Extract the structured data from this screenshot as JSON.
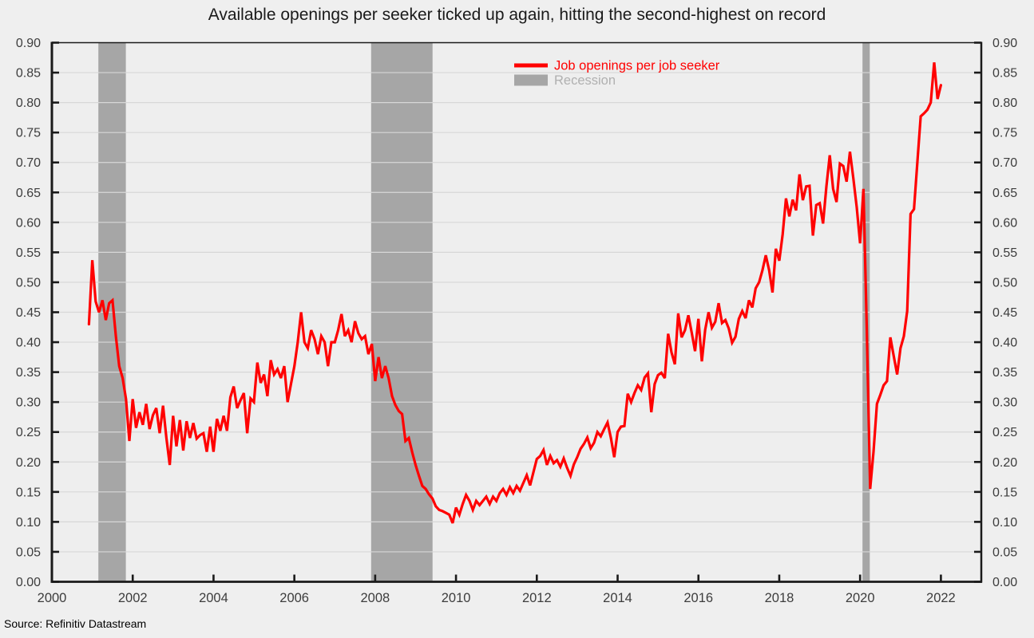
{
  "title": "Available openings per seeker ticked up again, hitting the second-highest on record",
  "source": "Source: Refinitiv Datastream",
  "colors": {
    "background": "#efefef",
    "plot_background": "#eeeeee",
    "line": "#ff0000",
    "recession_band": "#a6a6a6",
    "recession_legend_text": "#b0b0b0",
    "gridline": "#d7d7d7",
    "axis": "#1a1a1a",
    "tick_label": "#3d3d3d"
  },
  "chart_data": {
    "type": "line",
    "title": "Available openings per seeker ticked up again, hitting the second-highest on record",
    "xlabel": "",
    "ylabel": "",
    "xlim": [
      2000,
      2023
    ],
    "ylim": [
      0.0,
      0.9
    ],
    "x_ticks": [
      2000,
      2002,
      2004,
      2006,
      2008,
      2010,
      2012,
      2014,
      2016,
      2018,
      2020,
      2022
    ],
    "y_tick_step": 0.05,
    "grid": "horizontal",
    "legend_position": "top-center",
    "legend": [
      {
        "label": "Job openings per job seeker",
        "type": "line",
        "color": "#ff0000",
        "text_color": "#ff0000"
      },
      {
        "label": "Recession",
        "type": "box",
        "color": "#a6a6a6",
        "text_color": "#b0b0b0"
      }
    ],
    "recessions": [
      {
        "start": 2001.15,
        "end": 2001.83
      },
      {
        "start": 2007.9,
        "end": 2009.42
      },
      {
        "start": 2020.06,
        "end": 2020.24
      }
    ],
    "series": [
      {
        "name": "Job openings per job seeker",
        "color": "#ff0000",
        "frequency": "monthly",
        "start_year": 2000,
        "start_month": 12,
        "values": [
          0.43,
          0.537,
          0.468,
          0.45,
          0.47,
          0.437,
          0.465,
          0.47,
          0.41,
          0.36,
          0.34,
          0.305,
          0.235,
          0.305,
          0.257,
          0.283,
          0.262,
          0.297,
          0.255,
          0.278,
          0.29,
          0.248,
          0.294,
          0.24,
          0.195,
          0.277,
          0.226,
          0.27,
          0.219,
          0.268,
          0.24,
          0.265,
          0.239,
          0.245,
          0.248,
          0.217,
          0.259,
          0.217,
          0.272,
          0.252,
          0.277,
          0.252,
          0.308,
          0.326,
          0.29,
          0.303,
          0.315,
          0.248,
          0.306,
          0.3,
          0.366,
          0.332,
          0.346,
          0.31,
          0.37,
          0.346,
          0.355,
          0.34,
          0.36,
          0.3,
          0.33,
          0.36,
          0.4,
          0.45,
          0.4,
          0.39,
          0.42,
          0.405,
          0.38,
          0.41,
          0.4,
          0.36,
          0.4,
          0.4,
          0.42,
          0.447,
          0.41,
          0.42,
          0.4,
          0.435,
          0.415,
          0.405,
          0.41,
          0.38,
          0.397,
          0.335,
          0.375,
          0.34,
          0.36,
          0.34,
          0.31,
          0.295,
          0.285,
          0.28,
          0.235,
          0.24,
          0.216,
          0.195,
          0.177,
          0.16,
          0.155,
          0.146,
          0.139,
          0.126,
          0.12,
          0.118,
          0.115,
          0.112,
          0.098,
          0.124,
          0.112,
          0.13,
          0.145,
          0.135,
          0.12,
          0.135,
          0.128,
          0.135,
          0.142,
          0.13,
          0.142,
          0.135,
          0.148,
          0.155,
          0.145,
          0.158,
          0.148,
          0.16,
          0.152,
          0.165,
          0.178,
          0.161,
          0.183,
          0.205,
          0.21,
          0.22,
          0.195,
          0.21,
          0.198,
          0.203,
          0.192,
          0.206,
          0.19,
          0.177,
          0.196,
          0.208,
          0.222,
          0.23,
          0.241,
          0.223,
          0.232,
          0.25,
          0.243,
          0.255,
          0.266,
          0.24,
          0.208,
          0.25,
          0.259,
          0.26,
          0.314,
          0.3,
          0.315,
          0.328,
          0.32,
          0.341,
          0.348,
          0.283,
          0.33,
          0.345,
          0.349,
          0.34,
          0.414,
          0.383,
          0.363,
          0.448,
          0.408,
          0.42,
          0.445,
          0.416,
          0.385,
          0.439,
          0.368,
          0.421,
          0.45,
          0.424,
          0.434,
          0.465,
          0.432,
          0.437,
          0.423,
          0.399,
          0.409,
          0.439,
          0.452,
          0.44,
          0.47,
          0.458,
          0.49,
          0.5,
          0.52,
          0.545,
          0.52,
          0.483,
          0.556,
          0.536,
          0.58,
          0.64,
          0.61,
          0.638,
          0.62,
          0.68,
          0.637,
          0.66,
          0.661,
          0.578,
          0.629,
          0.632,
          0.598,
          0.66,
          0.712,
          0.656,
          0.634,
          0.698,
          0.694,
          0.668,
          0.718,
          0.674,
          0.625,
          0.565,
          0.656,
          0.42,
          0.155,
          0.217,
          0.297,
          0.312,
          0.328,
          0.335,
          0.408,
          0.377,
          0.346,
          0.39,
          0.41,
          0.452,
          0.614,
          0.622,
          0.7,
          0.777,
          0.782,
          0.788,
          0.8,
          0.867,
          0.806,
          0.829
        ]
      }
    ]
  }
}
